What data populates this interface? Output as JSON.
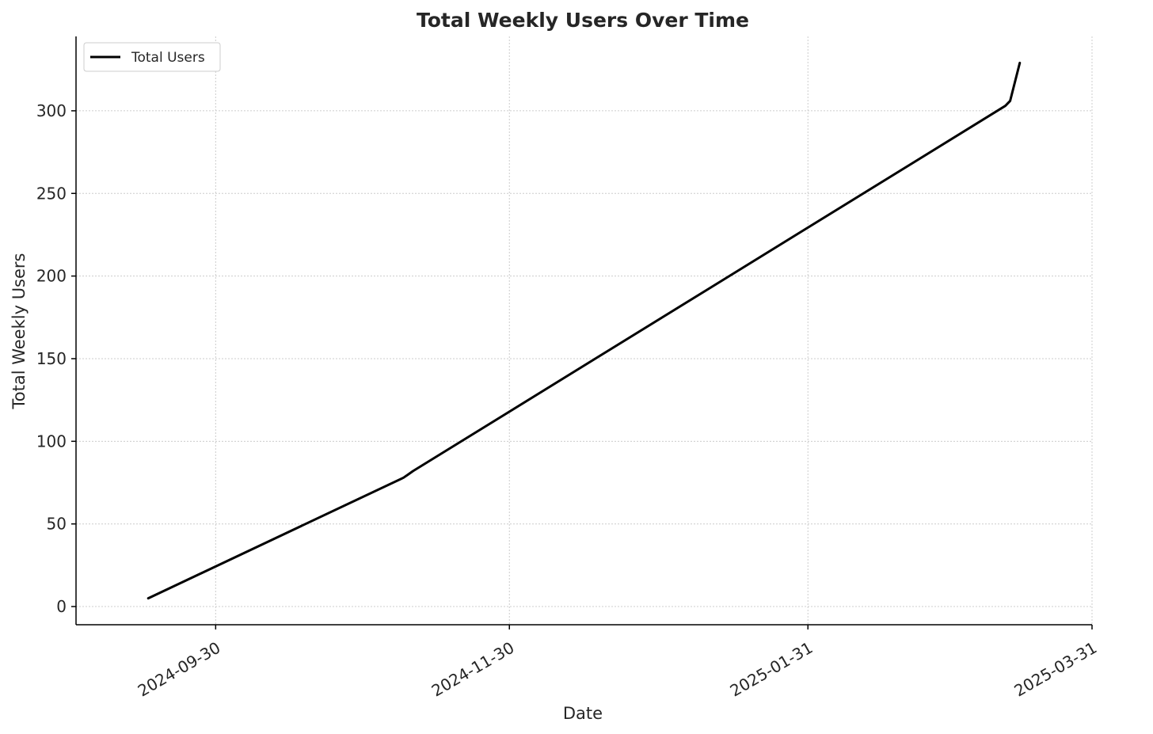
{
  "chart_data": {
    "type": "line",
    "title": "Total Weekly Users Over Time",
    "xlabel": "Date",
    "ylabel": "Total Weekly Users",
    "x_ticks": [
      "2024-09-30",
      "2024-11-30",
      "2025-01-31",
      "2025-03-31"
    ],
    "y_ticks": [
      0,
      50,
      100,
      150,
      200,
      250,
      300
    ],
    "xlim": [
      "2024-09-01",
      "2025-03-31"
    ],
    "ylim": [
      -11,
      345
    ],
    "grid": true,
    "legend": {
      "position": "top-left",
      "entries": [
        "Total Users"
      ]
    },
    "series": [
      {
        "name": "Total Users",
        "color": "#000000",
        "points": [
          {
            "x": "2024-09-16",
            "y": 5
          },
          {
            "x": "2024-11-08",
            "y": 78
          },
          {
            "x": "2024-11-09",
            "y": 80
          },
          {
            "x": "2024-11-10",
            "y": 82
          },
          {
            "x": "2025-03-13",
            "y": 303
          },
          {
            "x": "2025-03-14",
            "y": 306
          },
          {
            "x": "2025-03-16",
            "y": 329
          }
        ]
      }
    ]
  }
}
